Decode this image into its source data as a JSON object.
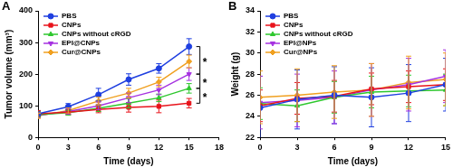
{
  "chart_data": [
    {
      "type": "line",
      "title": "A",
      "x_label": "Time (days)",
      "y_label": "Tumor volume (mm³)",
      "x": [
        0,
        3,
        6,
        9,
        12,
        15
      ],
      "xlim": [
        0,
        18
      ],
      "xticks": [
        0,
        3,
        6,
        9,
        12,
        15,
        18
      ],
      "ylim": [
        0,
        400
      ],
      "yticks": [
        0,
        100,
        200,
        300,
        400
      ],
      "grid": false,
      "legend": "upper left",
      "series": [
        {
          "name": "PBS",
          "color": "#1f3fe0",
          "marker": "circle",
          "values": [
            75,
            97,
            135,
            183,
            218,
            287
          ],
          "errors": [
            8,
            10,
            20,
            18,
            15,
            25
          ]
        },
        {
          "name": "CNPs",
          "color": "#e8131b",
          "marker": "square",
          "values": [
            75,
            80,
            88,
            95,
            98,
            108
          ],
          "errors": [
            10,
            8,
            10,
            15,
            20,
            15
          ]
        },
        {
          "name": "CNPs without cRGD",
          "color": "#2ec72e",
          "marker": "triangle",
          "values": [
            72,
            78,
            92,
            108,
            125,
            155
          ],
          "errors": [
            8,
            8,
            10,
            15,
            12,
            15
          ]
        },
        {
          "name": "EPI@CNPs",
          "color": "#a632e0",
          "marker": "triangle-down",
          "values": [
            70,
            82,
            100,
            125,
            150,
            200
          ],
          "errors": [
            8,
            8,
            12,
            15,
            15,
            20
          ]
        },
        {
          "name": "Cur@CNPs",
          "color": "#f0a020",
          "marker": "diamond",
          "values": [
            68,
            85,
            115,
            140,
            175,
            240
          ],
          "errors": [
            8,
            8,
            12,
            15,
            15,
            20
          ]
        }
      ],
      "annotations": [
        {
          "text": "*",
          "from": "PBS",
          "to": "EPI@CNPs"
        },
        {
          "text": "*",
          "from": "EPI@CNPs",
          "to": "CNPs without cRGD"
        },
        {
          "text": "*",
          "from": "CNPs without cRGD",
          "to": "CNPs"
        }
      ]
    },
    {
      "type": "line",
      "title": "B",
      "x_label": "Time (days)",
      "y_label": "Weight (g)",
      "x": [
        0,
        3,
        6,
        9,
        12,
        15
      ],
      "xlim": [
        0,
        15
      ],
      "xticks": [
        0,
        3,
        6,
        9,
        12,
        15
      ],
      "ylim": [
        22,
        34
      ],
      "yticks": [
        22,
        24,
        26,
        28,
        30,
        32,
        34
      ],
      "grid": false,
      "legend": "upper left",
      "series": [
        {
          "name": "PBS",
          "color": "#1f3fe0",
          "marker": "circle",
          "values": [
            24.8,
            25.6,
            26.0,
            25.8,
            26.2,
            27.0
          ],
          "errors": [
            3.0,
            2.8,
            2.7,
            2.8,
            2.7,
            2.5
          ]
        },
        {
          "name": "CNPs",
          "color": "#e8131b",
          "marker": "square",
          "values": [
            25.0,
            25.7,
            25.9,
            26.6,
            26.8,
            27.0
          ],
          "errors": [
            1.5,
            1.5,
            1.5,
            1.5,
            1.5,
            1.5
          ]
        },
        {
          "name": "CNPs without cRGD",
          "color": "#2ec72e",
          "marker": "triangle",
          "values": [
            25.2,
            25.0,
            25.8,
            26.3,
            26.4,
            26.5
          ],
          "errors": [
            1.5,
            1.5,
            1.5,
            1.5,
            1.5,
            1.5
          ]
        },
        {
          "name": "EPI@NPs",
          "color": "#a632e0",
          "marker": "triangle-down",
          "values": [
            25.3,
            25.5,
            25.8,
            26.5,
            27.0,
            27.8
          ],
          "errors": [
            2.5,
            2.5,
            2.5,
            2.5,
            2.5,
            2.5
          ]
        },
        {
          "name": "Cur@NPs",
          "color": "#f0a020",
          "marker": "diamond",
          "values": [
            25.8,
            26.0,
            26.3,
            26.5,
            27.2,
            27.5
          ],
          "errors": [
            2.5,
            2.5,
            2.5,
            2.5,
            2.5,
            2.5
          ]
        }
      ]
    }
  ]
}
